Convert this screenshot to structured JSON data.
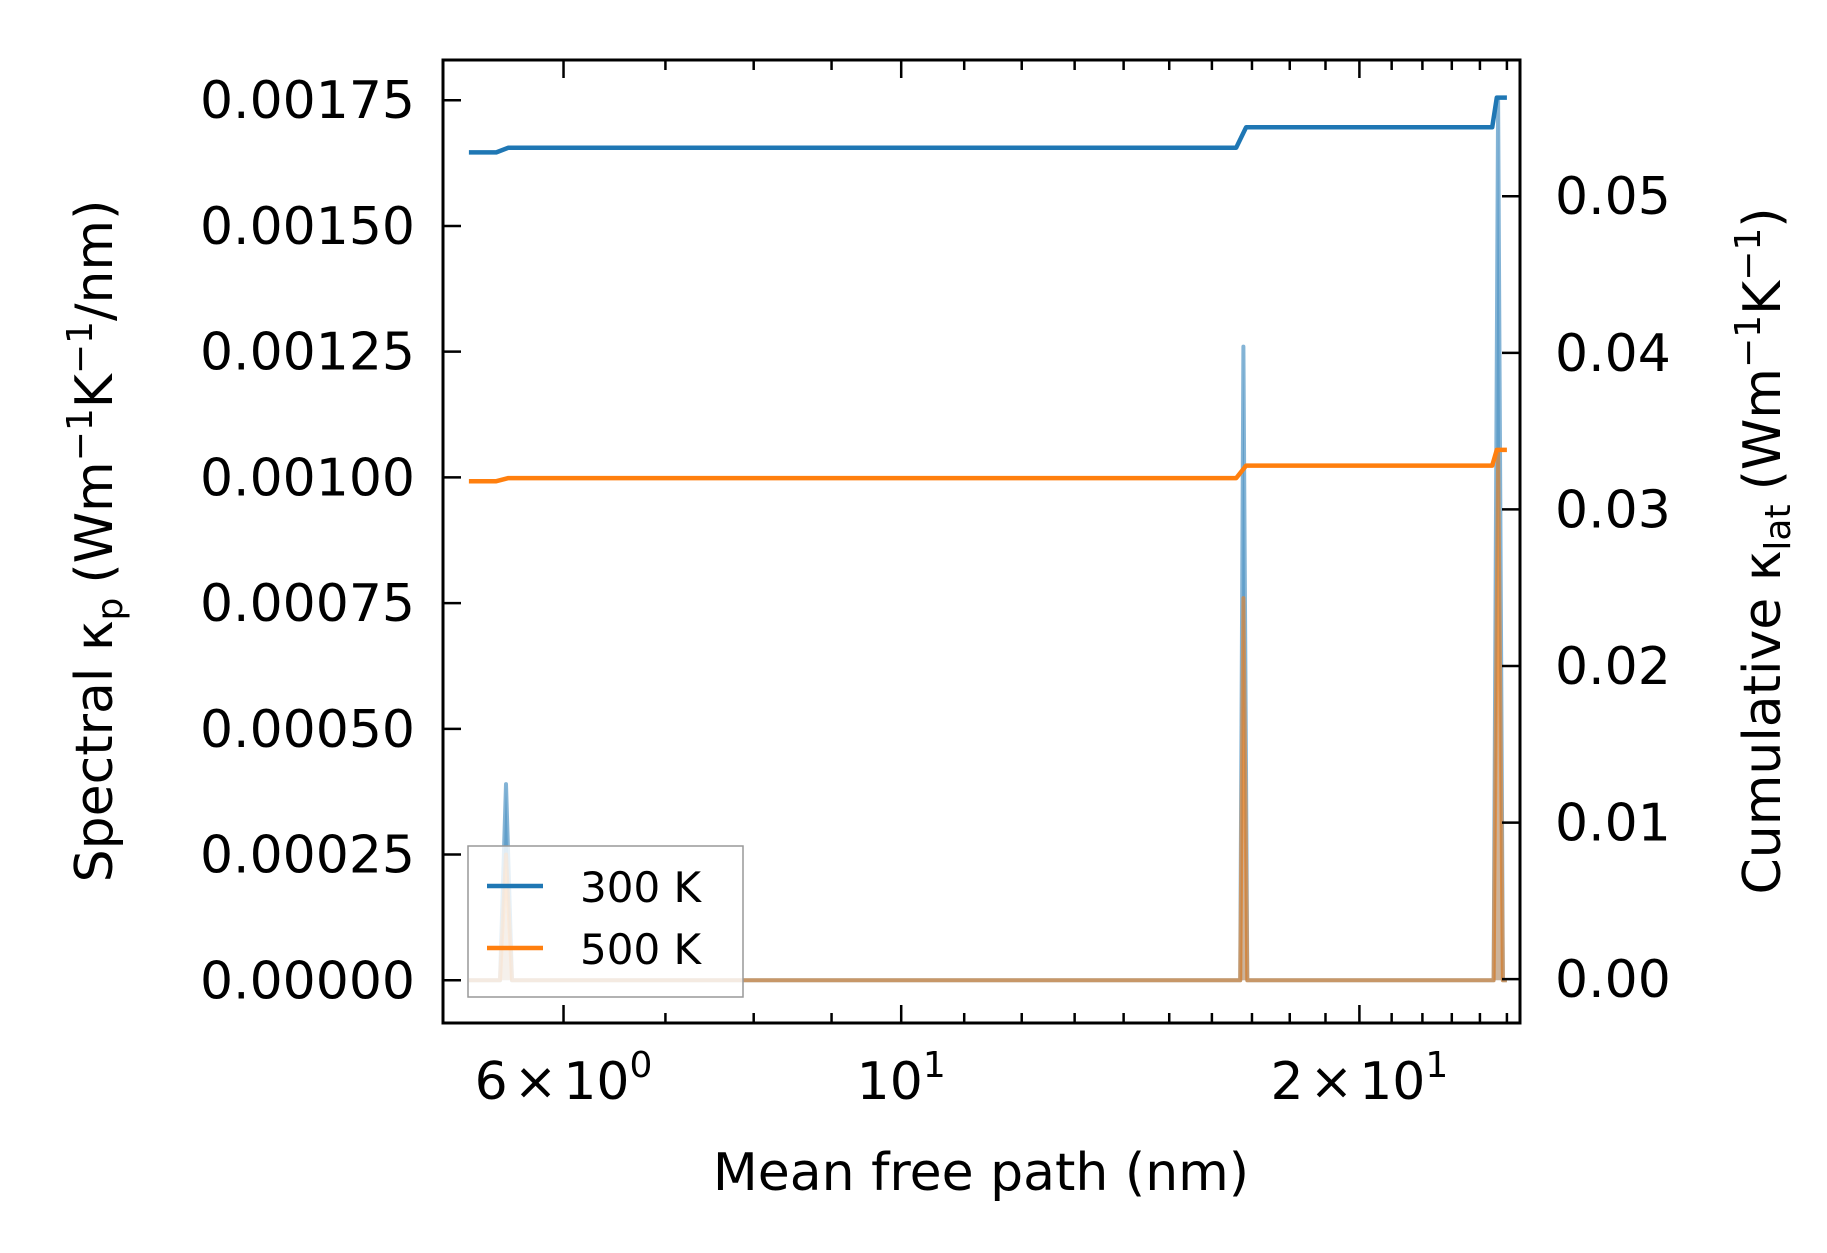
{
  "chart_data": {
    "type": "line",
    "xscale": "log",
    "x_unit": "nm",
    "xlim": [
      5.0,
      25.5
    ],
    "xlabel": "Mean free path (nm)",
    "xticks": [
      {
        "value": 6,
        "mantissa": "6",
        "exponent": "0"
      },
      {
        "value": 10,
        "mantissa": "",
        "exponent": "1"
      },
      {
        "value": 20,
        "mantissa": "2",
        "exponent": "1"
      }
    ],
    "left_axis": {
      "label_main": "Spectral κ",
      "label_sub": "p",
      "label_unit": {
        "open": "(Wm",
        "exp1": "−1",
        "k": "K",
        "exp2": "−1",
        "close": "/nm)"
      },
      "ylim": [
        -8.5e-05,
        0.00183
      ],
      "ticks": [
        "0.00000",
        "0.00025",
        "0.00050",
        "0.00075",
        "0.00100",
        "0.00125",
        "0.00150",
        "0.00175"
      ]
    },
    "right_axis": {
      "label_main": "Cumulative κ",
      "label_sub": "lat",
      "label_unit": {
        "open": "(Wm",
        "exp1": "−1",
        "k": "K",
        "exp2": "−1",
        "close": ")"
      },
      "ylim": [
        -0.0028,
        0.0587
      ],
      "ticks": [
        "0.00",
        "0.01",
        "0.02",
        "0.03",
        "0.04",
        "0.05"
      ]
    },
    "series": [
      {
        "name": "300 K",
        "color": "#1f77b4",
        "spectral": {
          "x": [
            5.2,
            5.45,
            5.5,
            5.55,
            5.62,
            16.6,
            16.7,
            16.78,
            16.88,
            17.0,
            24.3,
            24.5,
            24.67,
            24.85,
            25.0
          ],
          "y": [
            0,
            0,
            0.00039,
            0,
            0,
            0,
            0,
            0.00126,
            0,
            0,
            0,
            0,
            0.00175,
            0,
            0
          ]
        },
        "cumulative": {
          "x": [
            5.2,
            5.42,
            5.52,
            16.6,
            16.85,
            24.45,
            24.62,
            25.0
          ],
          "y": [
            0.0528,
            0.0528,
            0.0531,
            0.0531,
            0.0544,
            0.0544,
            0.0563,
            0.0563
          ]
        }
      },
      {
        "name": "500 K",
        "color": "#ff7f0e",
        "spectral": {
          "x": [
            5.2,
            5.45,
            5.5,
            5.55,
            5.62,
            16.6,
            16.7,
            16.78,
            16.88,
            17.0,
            24.3,
            24.5,
            24.67,
            24.85,
            25.0
          ],
          "y": [
            0,
            0,
            0.00025,
            0,
            0,
            0,
            0,
            0.00076,
            0,
            0,
            0,
            0,
            0.00105,
            0,
            0
          ]
        },
        "cumulative": {
          "x": [
            5.2,
            5.42,
            5.52,
            16.6,
            16.85,
            24.45,
            24.62,
            25.0
          ],
          "y": [
            0.0318,
            0.0318,
            0.032,
            0.032,
            0.0328,
            0.0328,
            0.0338,
            0.0338
          ]
        }
      }
    ],
    "legend": {
      "position": "lower-left",
      "entries": [
        "300 K",
        "500 K"
      ]
    }
  }
}
